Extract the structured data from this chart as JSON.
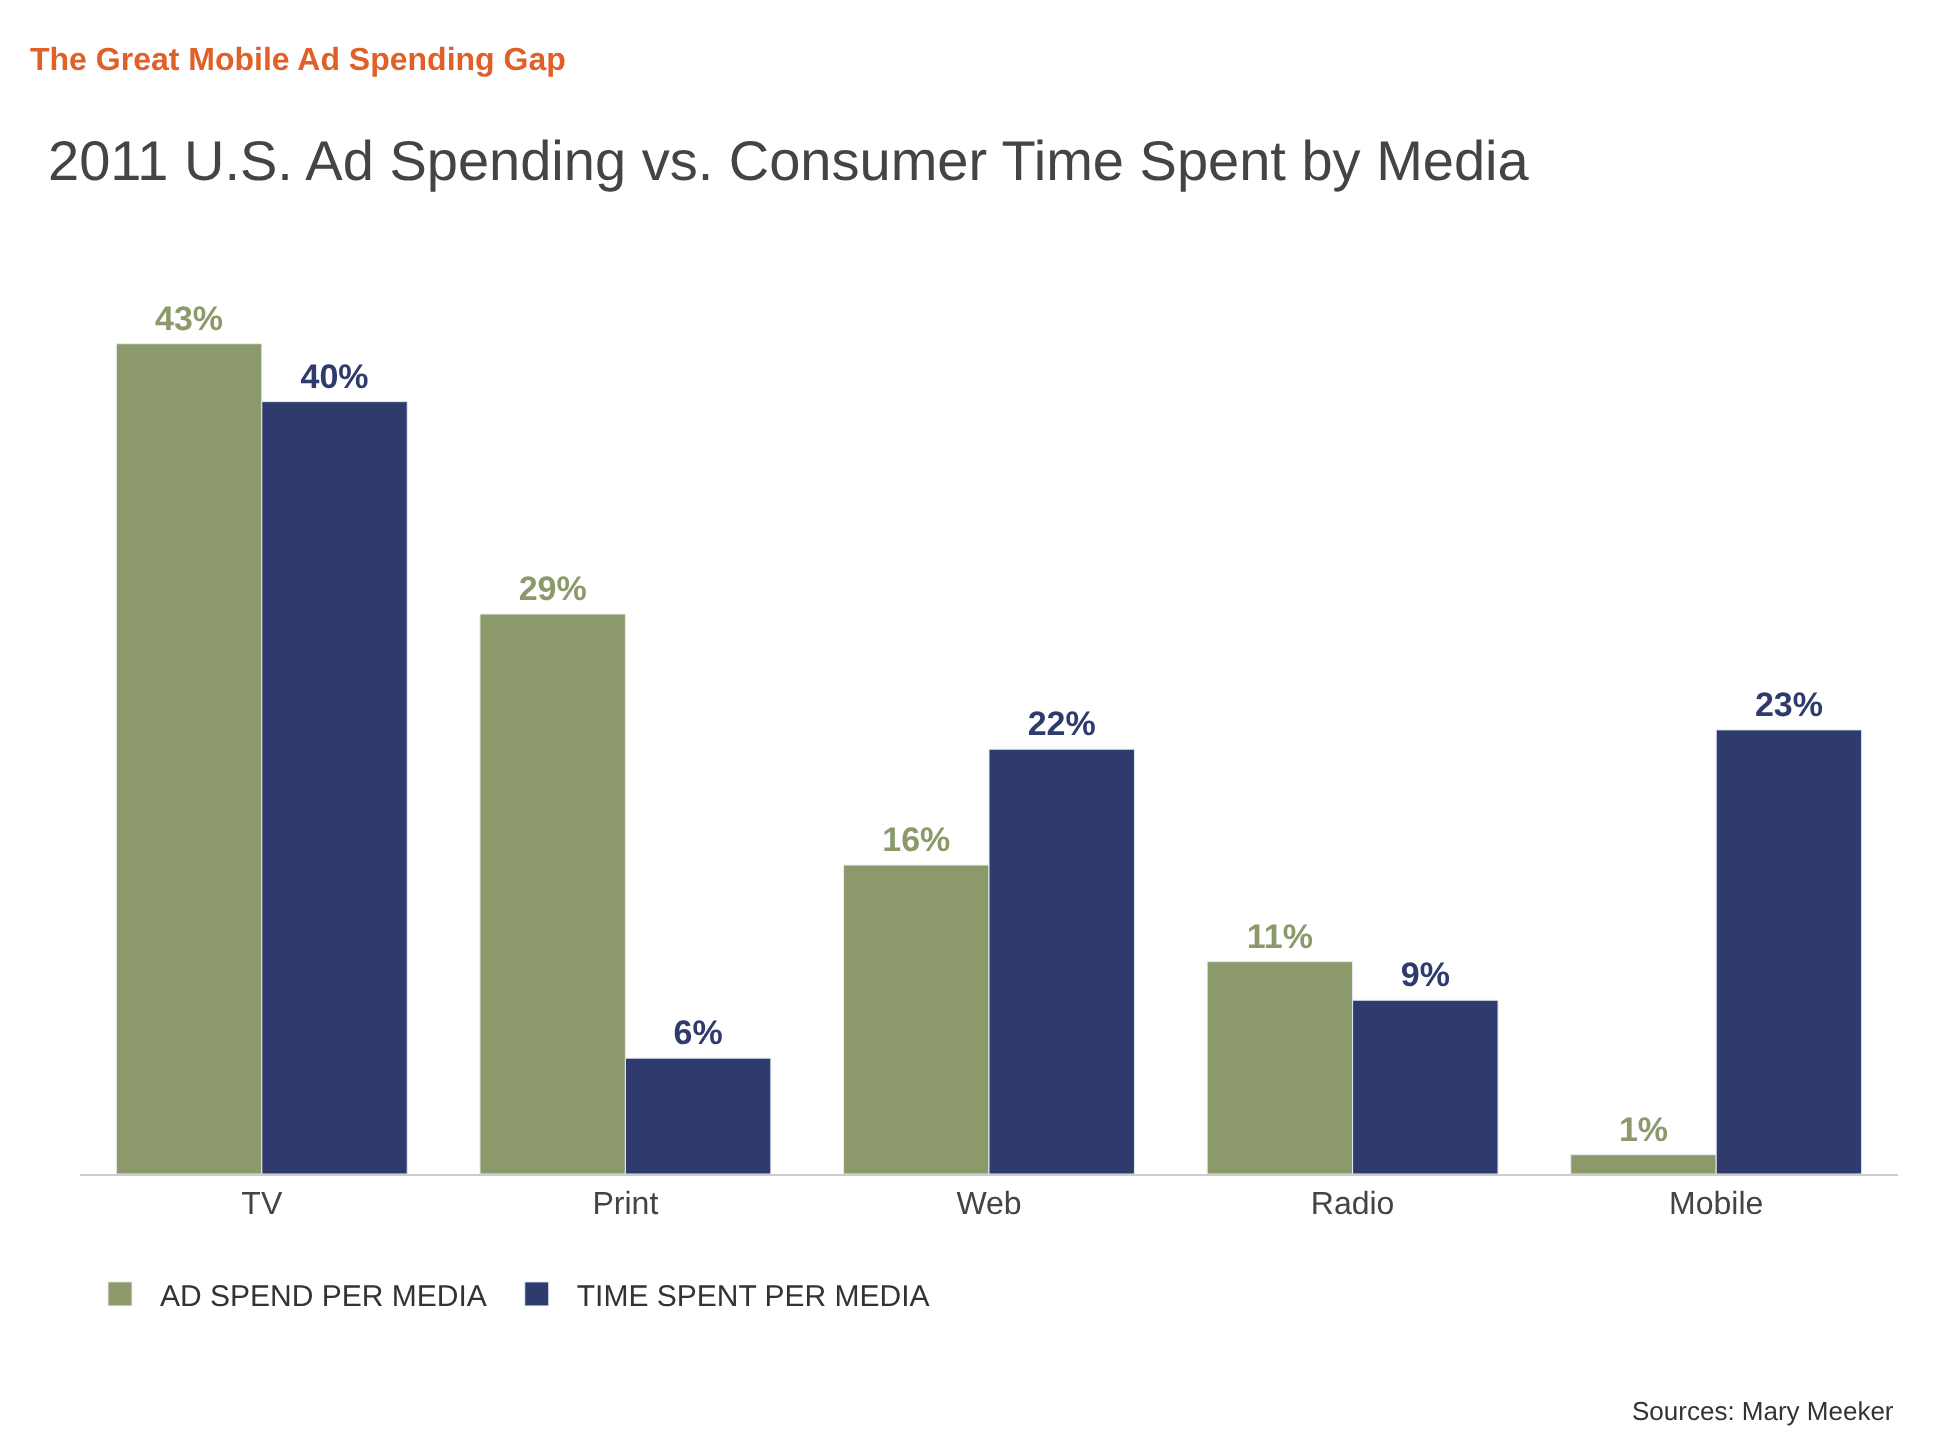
{
  "chart_data": {
    "type": "bar",
    "title": "The Great Mobile Ad Spending Gap",
    "subtitle": "2011 U.S. Ad Spending vs. Consumer Time Spent by Media",
    "categories": [
      "TV",
      "Print",
      "Web",
      "Radio",
      "Mobile"
    ],
    "series": [
      {
        "name": "AD SPEND PER MEDIA",
        "color": "#8c9a6b",
        "values": [
          43,
          29,
          16,
          11,
          1
        ],
        "value_labels": [
          "43%",
          "29%",
          "16%",
          "11%",
          "1%"
        ]
      },
      {
        "name": "TIME SPENT PER MEDIA",
        "color": "#2f3b6c",
        "values": [
          40,
          6,
          22,
          9,
          23
        ],
        "value_labels": [
          "40%",
          "6%",
          "22%",
          "9%",
          "23%"
        ]
      }
    ],
    "tick_labels": "x",
    "legend": "bottom left",
    "annotations": [
      "Sources: Mary Meeker"
    ]
  }
}
